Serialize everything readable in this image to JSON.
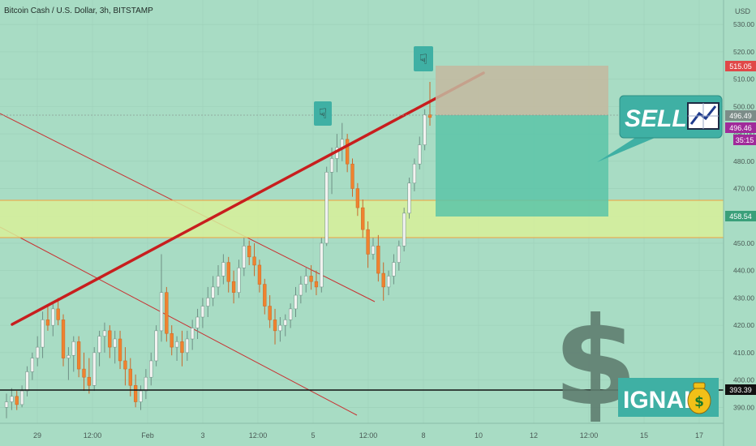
{
  "header": {
    "symbol_title": "Bitcoin Cash / U.S. Dollar, 3h, BITSTAMP",
    "currency": "USD"
  },
  "colors": {
    "background": "#a8dcc4",
    "up": "#f2f2f0",
    "down": "#f0822e",
    "trendline": "#c81e1e",
    "channel": "#c83232",
    "zone_fill": "#d8f09a",
    "zone_border": "#f0a040",
    "stop_zone": "#c4b8a0",
    "target_zone": "#5cc4a8",
    "badge_bg": "#3fb0a4",
    "support": "#111111"
  },
  "badges": {
    "sell": "SELL",
    "signal": "IGNAL",
    "dollar": "$"
  },
  "price_tags": {
    "stop": "515.05",
    "current": "496.49",
    "entry": "496.46",
    "timer": "35:15",
    "zone": "458.54",
    "support": "393.39"
  },
  "chart_data": {
    "type": "candlestick",
    "title": "Bitcoin Cash / U.S. Dollar, 3h, BITSTAMP",
    "ylabel": "USD",
    "ylim": [
      380,
      536
    ],
    "y_ticks": [
      390,
      400,
      410,
      420,
      430,
      440,
      450,
      460,
      470,
      480,
      490,
      500,
      510,
      520,
      530
    ],
    "x_tick_labels": [
      "29",
      "12:00",
      "Feb",
      "3",
      "12:00",
      "5",
      "12:00",
      "8",
      "10",
      "12",
      "12:00",
      "15",
      "17"
    ],
    "ohlc": [
      [
        390,
        395,
        386,
        392
      ],
      [
        392,
        397,
        389,
        394
      ],
      [
        394,
        396,
        389,
        391
      ],
      [
        391,
        398,
        390,
        396
      ],
      [
        396,
        405,
        394,
        403
      ],
      [
        403,
        410,
        400,
        408
      ],
      [
        408,
        416,
        405,
        412
      ],
      [
        412,
        425,
        408,
        422
      ],
      [
        422,
        427,
        418,
        420
      ],
      [
        420,
        428,
        416,
        426
      ],
      [
        426,
        430,
        420,
        422
      ],
      [
        422,
        424,
        405,
        408
      ],
      [
        408,
        412,
        400,
        409
      ],
      [
        409,
        416,
        403,
        414
      ],
      [
        414,
        416,
        401,
        404
      ],
      [
        404,
        410,
        396,
        401
      ],
      [
        401,
        408,
        395,
        398
      ],
      [
        398,
        412,
        396,
        410
      ],
      [
        410,
        418,
        405,
        416
      ],
      [
        416,
        421,
        410,
        418
      ],
      [
        418,
        420,
        408,
        412
      ],
      [
        412,
        418,
        406,
        415
      ],
      [
        415,
        418,
        404,
        407
      ],
      [
        407,
        412,
        398,
        404
      ],
      [
        404,
        408,
        394,
        398
      ],
      [
        398,
        402,
        390,
        392
      ],
      [
        392,
        398,
        389,
        396
      ],
      [
        396,
        404,
        393,
        401
      ],
      [
        401,
        410,
        398,
        407
      ],
      [
        407,
        420,
        405,
        418
      ],
      [
        418,
        446,
        414,
        432
      ],
      [
        432,
        434,
        414,
        417
      ],
      [
        417,
        420,
        409,
        412
      ],
      [
        412,
        416,
        407,
        414
      ],
      [
        414,
        418,
        405,
        410
      ],
      [
        410,
        418,
        407,
        415
      ],
      [
        415,
        422,
        411,
        419
      ],
      [
        419,
        426,
        415,
        423
      ],
      [
        423,
        430,
        419,
        427
      ],
      [
        427,
        434,
        423,
        430
      ],
      [
        430,
        438,
        427,
        434
      ],
      [
        434,
        442,
        431,
        438
      ],
      [
        438,
        446,
        435,
        443
      ],
      [
        443,
        445,
        432,
        436
      ],
      [
        436,
        440,
        428,
        432
      ],
      [
        432,
        444,
        430,
        441
      ],
      [
        441,
        452,
        438,
        449
      ],
      [
        449,
        451,
        442,
        445
      ],
      [
        445,
        450,
        438,
        442
      ],
      [
        442,
        444,
        432,
        435
      ],
      [
        435,
        437,
        424,
        427
      ],
      [
        427,
        431,
        419,
        422
      ],
      [
        422,
        426,
        413,
        418
      ],
      [
        418,
        423,
        414,
        420
      ],
      [
        420,
        424,
        416,
        422
      ],
      [
        422,
        428,
        419,
        426
      ],
      [
        426,
        434,
        423,
        431
      ],
      [
        431,
        438,
        428,
        435
      ],
      [
        435,
        441,
        432,
        438
      ],
      [
        438,
        442,
        433,
        436
      ],
      [
        436,
        440,
        431,
        434
      ],
      [
        434,
        452,
        432,
        450
      ],
      [
        450,
        478,
        449,
        476
      ],
      [
        476,
        485,
        468,
        481
      ],
      [
        481,
        490,
        476,
        485
      ],
      [
        485,
        494,
        480,
        488
      ],
      [
        488,
        490,
        476,
        479
      ],
      [
        479,
        481,
        467,
        470
      ],
      [
        470,
        472,
        460,
        463
      ],
      [
        463,
        466,
        452,
        455
      ],
      [
        455,
        458,
        441,
        446
      ],
      [
        446,
        452,
        444,
        449
      ],
      [
        449,
        453,
        436,
        439
      ],
      [
        439,
        443,
        429,
        434
      ],
      [
        434,
        440,
        431,
        438
      ],
      [
        438,
        446,
        435,
        443
      ],
      [
        443,
        451,
        440,
        449
      ],
      [
        449,
        463,
        447,
        461
      ],
      [
        461,
        474,
        459,
        472
      ],
      [
        472,
        481,
        469,
        479
      ],
      [
        479,
        489,
        477,
        486
      ],
      [
        486,
        499,
        484,
        497
      ],
      [
        497,
        509,
        493,
        496
      ]
    ]
  }
}
